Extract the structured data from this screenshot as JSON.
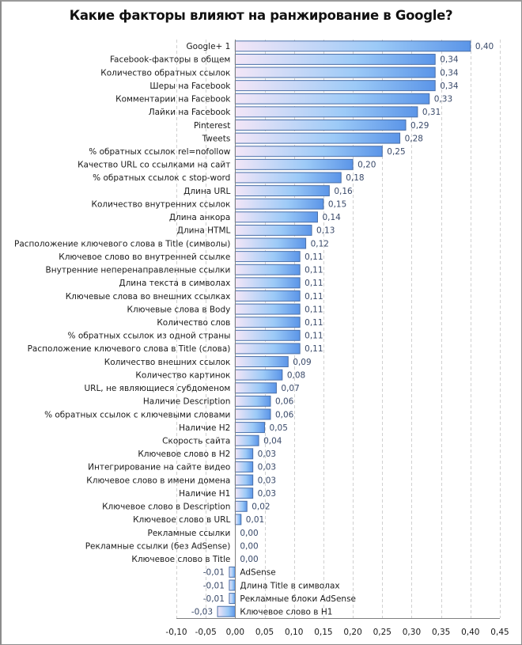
{
  "chart_data": {
    "type": "bar",
    "orientation": "horizontal",
    "title": "Какие факторы влияют на ранжирование в Google?",
    "xlabel": "",
    "ylabel": "",
    "xlim": [
      -0.1,
      0.45
    ],
    "xticks": [
      -0.1,
      -0.05,
      0.0,
      0.05,
      0.1,
      0.15,
      0.2,
      0.25,
      0.3,
      0.35,
      0.4,
      0.45
    ],
    "xtick_labels": [
      "-0,10",
      "-0,05",
      "0,00",
      "0,05",
      "0,10",
      "0,15",
      "0,20",
      "0,25",
      "0,30",
      "0,35",
      "0,40",
      "0,45"
    ],
    "grid": "vertical-dashed",
    "legend": "none",
    "bar_colors": {
      "start": "#f3e6f7",
      "mid": "#9ccaf7",
      "end": "#5b95e8",
      "border": "#4a6fa8"
    },
    "categories": [
      "Google+ 1",
      "Facebook-факторы в общем",
      "Количество обратных ссылок",
      "Шеры на Facebook",
      "Комментарии на Facebook",
      "Лайки на Facebook",
      "Pinterest",
      "Tweets",
      "% обратных ссылок rel=nofollow",
      "Качество URL со ссылками на сайт",
      "% обратных ссылок с stop-word",
      "Длина URL",
      "Количество внутренних ссылок",
      "Длина анкора",
      "Длина HTML",
      "Расположение ключевого слова в Title (символы)",
      "Ключевое слово во внутренней ссылке",
      "Внутренние неперенаправленные ссылки",
      "Длина текста в символах",
      "Ключевые слова во внешних ссылках",
      "Ключевые слова в Body",
      "Количество слов",
      "% обратных ссылок из одной страны",
      "Расположение ключевого слова в Title (слова)",
      "Количество внешних ссылок",
      "Количество картинок",
      "URL, не являющиеся субдоменом",
      "Наличие Description",
      "% обратных ссылок с ключевыми словами",
      "Наличие H2",
      "Скорость сайта",
      "Ключевое слово в H2",
      "Интегрирование на сайте видео",
      "Ключевое слово в имени домена",
      "Наличие H1",
      "Ключевое слово в Description",
      "Ключевое слово в URL",
      "Рекламные ссылки",
      "Рекламные ссылки (без AdSense)",
      "Ключевое слово в Title",
      "AdSense",
      "Длина Title в символах",
      "Рекламные блоки AdSense",
      "Ключевое слово в H1"
    ],
    "values": [
      0.4,
      0.34,
      0.34,
      0.34,
      0.33,
      0.31,
      0.29,
      0.28,
      0.25,
      0.2,
      0.18,
      0.16,
      0.15,
      0.14,
      0.13,
      0.12,
      0.11,
      0.11,
      0.11,
      0.11,
      0.11,
      0.11,
      0.11,
      0.11,
      0.09,
      0.08,
      0.07,
      0.06,
      0.06,
      0.05,
      0.04,
      0.03,
      0.03,
      0.03,
      0.03,
      0.02,
      0.01,
      0.0,
      0.0,
      0.0,
      -0.01,
      -0.01,
      -0.01,
      -0.03
    ],
    "value_labels": [
      "0,40",
      "0,34",
      "0,34",
      "0,34",
      "0,33",
      "0,31",
      "0,29",
      "0,28",
      "0,25",
      "0,20",
      "0,18",
      "0,16",
      "0,15",
      "0,14",
      "0,13",
      "0,12",
      "0,11",
      "0,11",
      "0,11",
      "0,11",
      "0,11",
      "0,11",
      "0,11",
      "0,11",
      "0,09",
      "0,08",
      "0,07",
      "0,06",
      "0,06",
      "0,05",
      "0,04",
      "0,03",
      "0,03",
      "0,03",
      "0,03",
      "0,02",
      "0,01",
      "0,00",
      "0,00",
      "0,00",
      "-0,01",
      "-0,01",
      "-0,01",
      "-0,03"
    ]
  }
}
